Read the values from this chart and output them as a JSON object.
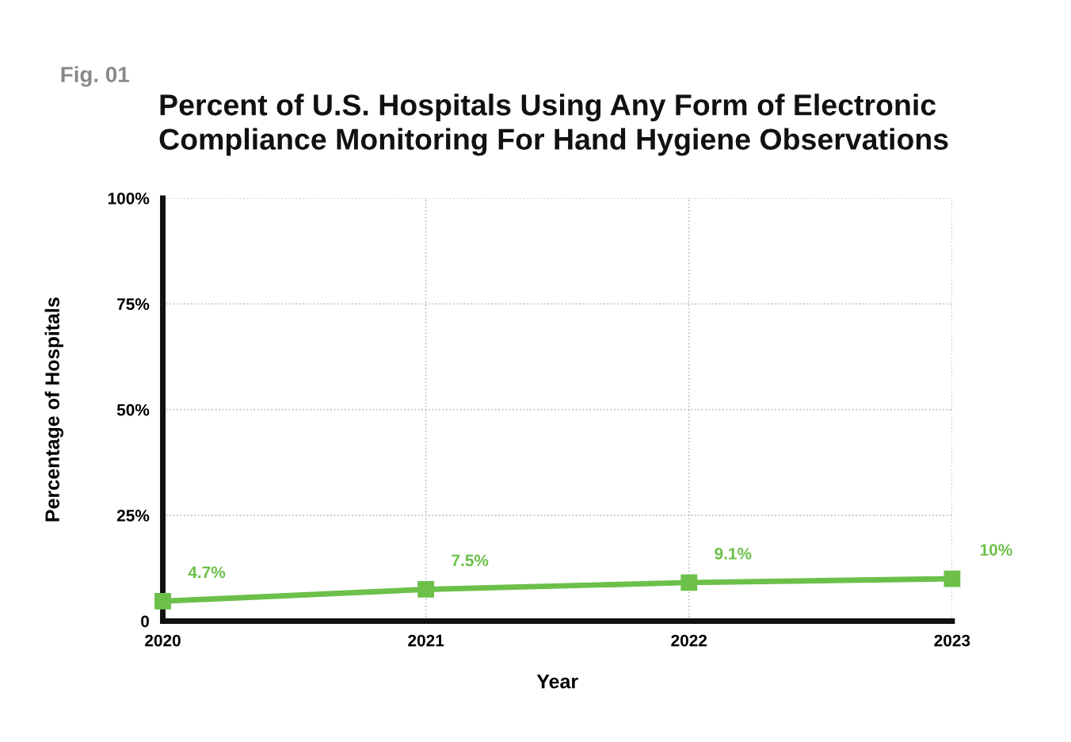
{
  "chart_data": {
    "type": "line",
    "title": "Percent of U.S. Hospitals Using Any Form of Electronic Compliance Monitoring For Hand Hygiene Observations",
    "annotations": [
      "Fig. 01"
    ],
    "xlabel": "Year",
    "ylabel": "Percentage of Hospitals",
    "x": [
      2020,
      2021,
      2022,
      2023
    ],
    "xlim": [
      2020,
      2023
    ],
    "xticks": [
      2020,
      2021,
      2022,
      2023
    ],
    "ylim": [
      0,
      100
    ],
    "yticks": [
      0,
      {
        "value": 25,
        "label": "25%"
      },
      {
        "value": 50,
        "label": "50%"
      },
      {
        "value": 75,
        "label": "75%"
      },
      {
        "value": 100,
        "label": "100%"
      }
    ],
    "series": [
      {
        "color": "#6cc04a",
        "values": [
          4.7,
          7.5,
          9.1,
          10
        ],
        "value_labels": [
          "4.7%",
          "7.5%",
          "9.1%",
          "10%"
        ]
      }
    ],
    "marker": "square",
    "line_style": "solid",
    "grid": true,
    "legend": false
  }
}
